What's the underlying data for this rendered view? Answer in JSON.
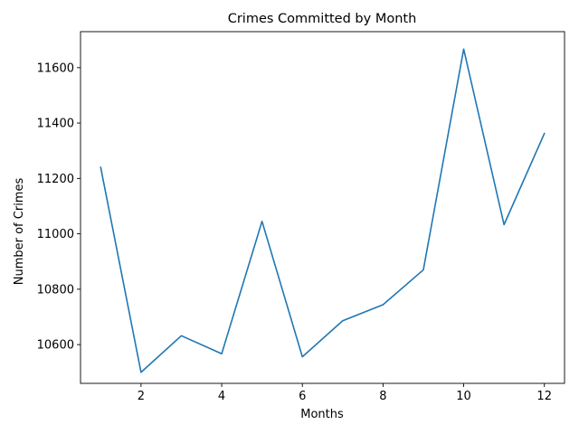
{
  "chart_data": {
    "type": "line",
    "title": "Crimes Committed by Month",
    "xlabel": "Months",
    "ylabel": "Number of Crimes",
    "xlim": [
      0.5,
      12.5
    ],
    "ylim": [
      10460,
      11730
    ],
    "xticks": [
      2,
      4,
      6,
      8,
      10,
      12
    ],
    "yticks": [
      10600,
      10800,
      11000,
      11200,
      11400,
      11600
    ],
    "grid": false,
    "legend": "none",
    "series": [
      {
        "color": "#1f77b4",
        "x": [
          1,
          2,
          3,
          4,
          5,
          6,
          7,
          8,
          9,
          10,
          11,
          12
        ],
        "values": [
          11240,
          10500,
          10632,
          10567,
          11045,
          10556,
          10686,
          10744,
          10870,
          11667,
          11033,
          11362
        ]
      }
    ]
  }
}
